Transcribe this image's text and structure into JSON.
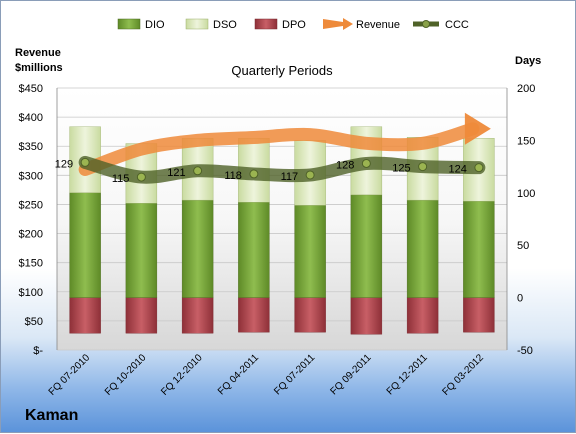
{
  "company": "Kaman",
  "chart_data": {
    "type": "bar",
    "title": "Quarterly Periods",
    "left_axis_label": "Revenue\n$millions",
    "right_axis_label": "Days",
    "left_ticks": [
      "$-",
      "$50",
      "$100",
      "$150",
      "$200",
      "$250",
      "$300",
      "$350",
      "$400",
      "$450"
    ],
    "right_ticks": [
      "-50",
      "0",
      "50",
      "100",
      "150",
      "200"
    ],
    "ylim_left": [
      0,
      450
    ],
    "ylim_right": [
      -50,
      200
    ],
    "categories": [
      "FQ 07-2010",
      "FQ 10-2010",
      "FQ 12-2010",
      "FQ 04-2011",
      "FQ 07-2011",
      "FQ 09-2011",
      "FQ 12-2011",
      "FQ 03-2012"
    ],
    "legend": [
      "DIO",
      "DSO",
      "DPO",
      "Revenue",
      "CCC"
    ],
    "legend_position": "top",
    "colors": {
      "DIO": "#77a33a",
      "DSO": "#d7e4b6",
      "DPO": "#b84a52",
      "Revenue": "#ee8a3a",
      "CCC": "#4f6228"
    },
    "series": [
      {
        "name": "DIO",
        "axis": "right",
        "values": [
          100,
          90,
          93,
          91,
          88,
          98,
          93,
          92
        ]
      },
      {
        "name": "DSO",
        "axis": "right",
        "values": [
          63,
          57,
          59,
          61,
          62,
          65,
          60,
          60
        ]
      },
      {
        "name": "DPO",
        "axis": "right",
        "values": [
          -34,
          -34,
          -34,
          -33,
          -33,
          -35,
          -34,
          -33
        ]
      },
      {
        "name": "Revenue",
        "axis": "left",
        "values": [
          310,
          345,
          360,
          365,
          370,
          355,
          355,
          380
        ]
      },
      {
        "name": "CCC",
        "axis": "right",
        "values": [
          129,
          115,
          121,
          118,
          117,
          128,
          125,
          124
        ]
      }
    ],
    "ccc_labels": [
      "129",
      "115",
      "121",
      "118",
      "117",
      "128",
      "125",
      "124"
    ],
    "grid": true
  }
}
